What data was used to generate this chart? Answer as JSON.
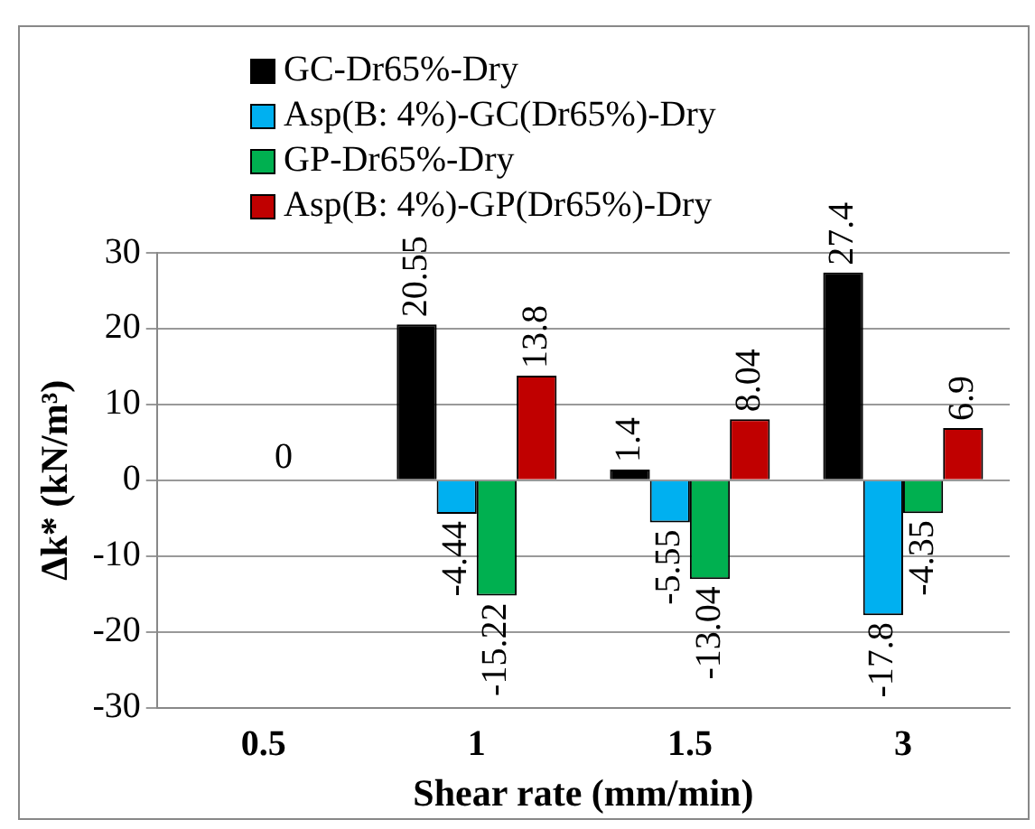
{
  "chart_data": {
    "type": "bar",
    "xlabel": "Shear rate (mm/min)",
    "ylabel": "Δk* (kN/m³)",
    "categories": [
      "0.5",
      "1",
      "1.5",
      "3"
    ],
    "series": [
      {
        "name": "GC-Dr65%-Dry",
        "color": "#000000",
        "values": [
          null,
          20.55,
          1.4,
          27.4
        ],
        "value_labels": [
          null,
          "20.55",
          "1.4",
          "27.4"
        ]
      },
      {
        "name": "Asp(B: 4%)-GC(Dr65%)-Dry",
        "color": "#00b0f0",
        "values": [
          null,
          -4.44,
          -5.55,
          -17.8
        ],
        "value_labels": [
          null,
          "-4.44",
          "-5.55",
          "-17.8"
        ]
      },
      {
        "name": "GP-Dr65%-Dry",
        "color": "#00b050",
        "values": [
          0,
          -15.22,
          -13.04,
          -4.35
        ],
        "value_labels": [
          "0",
          "-15.22",
          "-13.04",
          "-4.35"
        ]
      },
      {
        "name": "Asp(B: 4%)-GP(Dr65%)-Dry",
        "color": "#c00000",
        "values": [
          null,
          13.8,
          8.04,
          6.9
        ],
        "value_labels": [
          null,
          "13.8",
          "8.04",
          "6.9"
        ]
      }
    ],
    "ylim": [
      -30,
      30
    ],
    "yticks": [
      -30,
      -20,
      -10,
      0,
      10,
      20,
      30
    ],
    "grid": "y",
    "legend": "top"
  }
}
